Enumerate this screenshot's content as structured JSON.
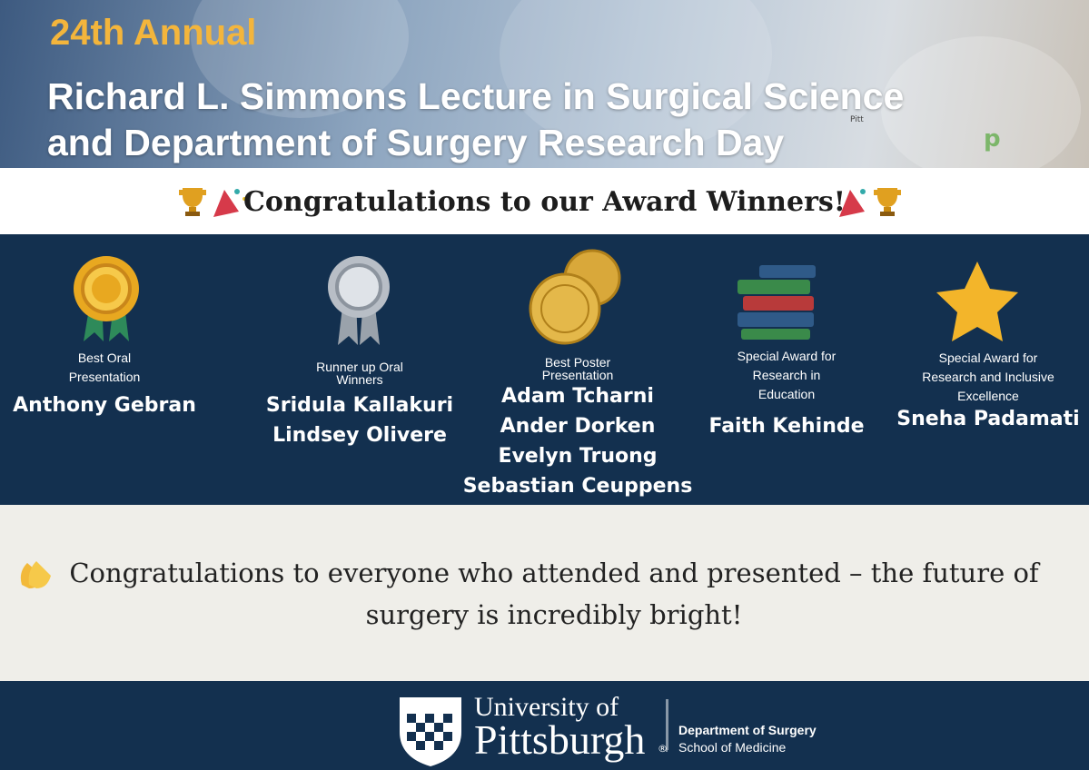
{
  "header": {
    "edition": "24th Annual",
    "title_lines": [
      "Richard L. Simmons Lecture in Surgical Science",
      "and Department of Surgery Research Day"
    ],
    "small_mark": "Pitt",
    "corner_mark": "p"
  },
  "banner": {
    "text": "Congratulations to our Award Winners!"
  },
  "awards": [
    {
      "category": "Best Oral Presentation",
      "winners": [
        "Anthony Gebran"
      ]
    },
    {
      "category": "Runner up Oral Winners",
      "winners": [
        "Sridula Kallakuri",
        "Lindsey Olivere"
      ]
    },
    {
      "category": "Best Poster Presentation",
      "winners": [
        "Adam Tcharni",
        "Ander Dorken",
        "Evelyn Truong",
        "Sebastian Ceuppens"
      ]
    },
    {
      "category": "Special Award for Research in Education",
      "winners": [
        "Faith Kehinde"
      ]
    },
    {
      "category": "Special Award for Research and Inclusive Excellence",
      "winners": [
        "Sneha Padamati"
      ]
    }
  ],
  "closing": {
    "text": "Congratulations to everyone who attended and presented – the future of surgery is incredibly bright!"
  },
  "footer": {
    "university_line1": "University of",
    "university_line2": "Pittsburgh",
    "registered": "®",
    "department": "Department of Surgery",
    "school": "School of Medicine"
  }
}
